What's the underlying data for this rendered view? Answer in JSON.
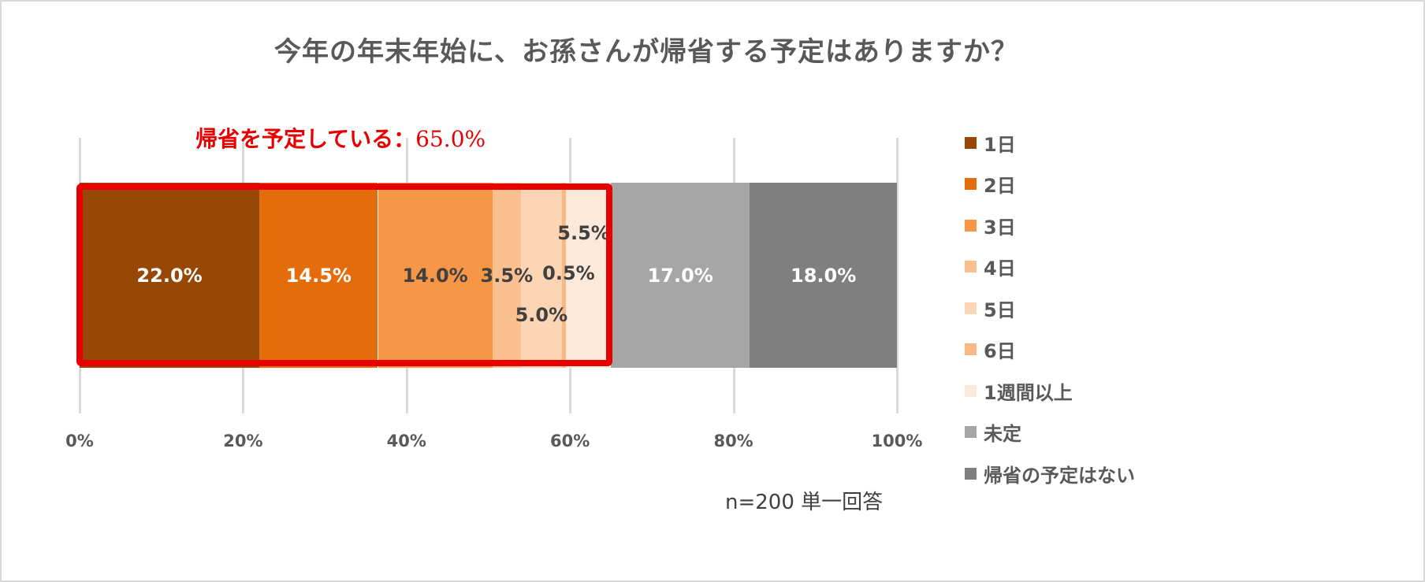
{
  "title": "今年の年末年始に、お孫さんが帰省する予定はありますか？",
  "callout": {
    "label": "帰省を予定している：",
    "value": "65.0%"
  },
  "footnote": "n=200  単一回答",
  "x_ticks": [
    "0%",
    "20%",
    "40%",
    "60%",
    "80%",
    "100%"
  ],
  "legend": [
    {
      "label": "1日",
      "color": "#974706"
    },
    {
      "label": "2日",
      "color": "#e46c0a"
    },
    {
      "label": "3日",
      "color": "#f79646"
    },
    {
      "label": "4日",
      "color": "#fac090"
    },
    {
      "label": "5日",
      "color": "#fcd5b5"
    },
    {
      "label": "6日",
      "color": "#fab886"
    },
    {
      "label": "1週間以上",
      "color": "#fde9d9"
    },
    {
      "label": "未定",
      "color": "#a6a6a6"
    },
    {
      "label": "帰省の予定はない",
      "color": "#7f7f7f"
    }
  ],
  "segments": [
    {
      "label": "22.0%",
      "value": 22.0,
      "color": "#974706",
      "text_color": "#ffffff"
    },
    {
      "label": "14.5%",
      "value": 14.5,
      "color": "#e46c0a",
      "text_color": "#ffffff"
    },
    {
      "label": "14.0%",
      "value": 14.0,
      "color": "#f79646",
      "text_color": "#404040"
    },
    {
      "label": "3.5%",
      "value": 3.5,
      "color": "#fac090",
      "text_color": "#404040"
    },
    {
      "label": "5.0%",
      "value": 5.0,
      "color": "#fcd5b5",
      "text_color": "#404040"
    },
    {
      "label": "0.5%",
      "value": 0.5,
      "color": "#fab886",
      "text_color": "#404040"
    },
    {
      "label": "5.5%",
      "value": 5.5,
      "color": "#fde9d9",
      "text_color": "#404040"
    },
    {
      "label": "17.0%",
      "value": 17.0,
      "color": "#a6a6a6",
      "text_color": "#ffffff"
    },
    {
      "label": "18.0%",
      "value": 18.0,
      "color": "#7f7f7f",
      "text_color": "#ffffff"
    }
  ],
  "chart_data": {
    "type": "bar",
    "orientation": "horizontal",
    "stacked": "percent",
    "title": "今年の年末年始に、お孫さんが帰省する予定はありますか？",
    "categories": [
      ""
    ],
    "series": [
      {
        "name": "1日",
        "values": [
          22.0
        ]
      },
      {
        "name": "2日",
        "values": [
          14.5
        ]
      },
      {
        "name": "3日",
        "values": [
          14.0
        ]
      },
      {
        "name": "4日",
        "values": [
          3.5
        ]
      },
      {
        "name": "5日",
        "values": [
          5.0
        ]
      },
      {
        "name": "6日",
        "values": [
          0.5
        ]
      },
      {
        "name": "1週間以上",
        "values": [
          5.5
        ]
      },
      {
        "name": "未定",
        "values": [
          17.0
        ]
      },
      {
        "name": "帰省の予定はない",
        "values": [
          18.0
        ]
      }
    ],
    "xlabel": "",
    "ylabel": "",
    "xlim": [
      0,
      100
    ],
    "x_ticks": [
      "0%",
      "20%",
      "40%",
      "60%",
      "80%",
      "100%"
    ],
    "grid": "vertical",
    "legend_position": "right",
    "annotations": [
      "帰省を予定している：65.0%",
      "n=200  単一回答"
    ]
  }
}
